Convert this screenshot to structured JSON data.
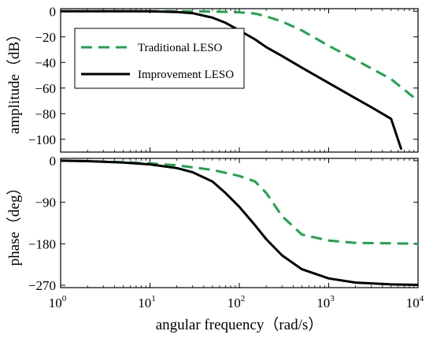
{
  "chart_data": [
    {
      "type": "line",
      "xscale": "log",
      "xlim": [
        1,
        10000
      ],
      "ylim": [
        -110,
        2
      ],
      "ylabel": "amplitude（dB）",
      "yticks": [
        0,
        -20,
        -40,
        -60,
        -80,
        -100
      ],
      "ytick_labels": [
        "0",
        "−20",
        "−40",
        "−60",
        "−80",
        "−100"
      ],
      "grid": false,
      "legend_position": "upper-left",
      "series": [
        {
          "name": "Traditional LESO",
          "color": "#1aa64a",
          "dash": "dashed",
          "x": [
            1,
            2,
            5,
            10,
            20,
            50,
            100,
            150,
            200,
            300,
            500,
            1000,
            2000,
            5000,
            10000
          ],
          "y": [
            0,
            0,
            0,
            0,
            0,
            -0.2,
            -0.8,
            -1.8,
            -4,
            -8,
            -15,
            -27,
            -38,
            -53,
            -70
          ]
        },
        {
          "name": "Improvement LESO",
          "color": "#000000",
          "dash": "solid",
          "x": [
            1,
            2,
            5,
            10,
            20,
            30,
            50,
            70,
            100,
            150,
            200,
            300,
            500,
            1000,
            2000,
            3000,
            5000,
            6500
          ],
          "y": [
            0,
            0,
            0,
            -0.1,
            -0.6,
            -1.5,
            -5,
            -9,
            -15,
            -22,
            -28,
            -35,
            -44,
            -56,
            -68,
            -75,
            -84,
            -108
          ]
        }
      ]
    },
    {
      "type": "line",
      "xscale": "log",
      "xlim": [
        1,
        10000
      ],
      "ylim": [
        -275,
        5
      ],
      "xlabel": "angular frequency（rad/s）",
      "ylabel": "phase（deg）",
      "xticks": [
        1,
        10,
        100,
        1000,
        10000
      ],
      "xtick_base": [
        "10",
        "10",
        "10",
        "10",
        "10"
      ],
      "xtick_exp": [
        "0",
        "1",
        "2",
        "3",
        "4"
      ],
      "yticks": [
        0,
        -90,
        -180,
        -270
      ],
      "ytick_labels": [
        "0",
        "−90",
        "−180",
        "−270"
      ],
      "grid": false,
      "series": [
        {
          "name": "Traditional LESO",
          "color": "#1aa64a",
          "dash": "dashed",
          "x": [
            1,
            2,
            5,
            10,
            20,
            50,
            100,
            150,
            200,
            300,
            500,
            1000,
            2000,
            5000,
            10000
          ],
          "y": [
            0,
            -1,
            -3,
            -6,
            -10,
            -20,
            -33,
            -45,
            -70,
            -120,
            -160,
            -173,
            -178,
            -179,
            -180
          ]
        },
        {
          "name": "Improvement LESO",
          "color": "#000000",
          "dash": "solid",
          "x": [
            1,
            2,
            5,
            10,
            20,
            30,
            50,
            70,
            100,
            150,
            200,
            300,
            500,
            1000,
            2000,
            5000,
            10000
          ],
          "y": [
            0,
            -1,
            -4,
            -8,
            -16,
            -25,
            -45,
            -70,
            -100,
            -140,
            -170,
            -205,
            -235,
            -255,
            -264,
            -268,
            -269
          ]
        }
      ]
    }
  ]
}
